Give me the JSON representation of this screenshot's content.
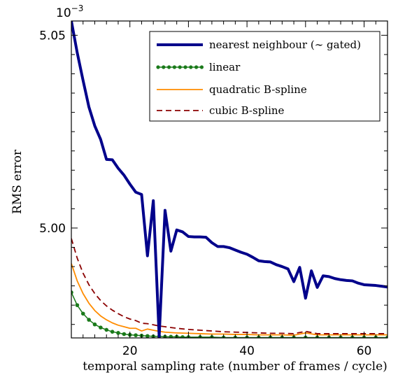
{
  "chart_data": {
    "type": "line",
    "title": "",
    "xlabel": "temporal sampling rate (number of frames / cycle)",
    "ylabel": "RMS error",
    "y_multiplier_label": "10",
    "y_multiplier_exponent": "−3",
    "xlim": [
      10,
      64
    ],
    "ylim": [
      4.9715,
      5.0537
    ],
    "x_ticks": [
      20,
      40,
      60
    ],
    "x_tick_labels": [
      "20",
      "40",
      "60"
    ],
    "y_ticks": [
      5.0,
      5.05
    ],
    "y_tick_labels": [
      "5.00",
      "5.05"
    ],
    "grid": false,
    "legend_position": "top-right",
    "series": [
      {
        "name": "nearest neighbour (∼ gated)",
        "color": "#00008b",
        "style": "solid-thick",
        "x": [
          10,
          11,
          12,
          13,
          14,
          15,
          16,
          17,
          18,
          19,
          20,
          21,
          22,
          23,
          24,
          25,
          26,
          27,
          28,
          29,
          30,
          31,
          32,
          33,
          34,
          35,
          36,
          37,
          38,
          39,
          40,
          41,
          42,
          43,
          44,
          45,
          46,
          47,
          48,
          49,
          50,
          51,
          52,
          53,
          54,
          55,
          56,
          57,
          58,
          59,
          60,
          61,
          62,
          63,
          64
        ],
        "values": [
          5.0537,
          5.0455,
          5.0383,
          5.0314,
          5.0265,
          5.023,
          5.0178,
          5.0177,
          5.0155,
          5.0137,
          5.0114,
          5.0093,
          5.0087,
          4.9928,
          5.0071,
          4.9718,
          5.0046,
          4.994,
          4.9995,
          4.999,
          4.9978,
          4.9977,
          4.9977,
          4.9976,
          4.9962,
          4.9952,
          4.9952,
          4.9949,
          4.9943,
          4.9937,
          4.9932,
          4.9924,
          4.9915,
          4.9913,
          4.9912,
          4.9905,
          4.99,
          4.9894,
          4.9861,
          4.9898,
          4.9818,
          4.9889,
          4.9846,
          4.9876,
          4.9874,
          4.9869,
          4.9866,
          4.9864,
          4.9863,
          4.9857,
          4.9853,
          4.9852,
          4.9851,
          4.9849,
          4.9847
        ]
      },
      {
        "name": "linear",
        "color": "#1a7a1a",
        "style": "dotted-markers",
        "x": [
          10,
          11,
          12,
          13,
          14,
          15,
          16,
          17,
          18,
          19,
          20,
          21,
          22,
          23,
          24,
          25,
          26,
          27,
          28,
          29,
          30,
          32,
          34,
          36,
          38,
          40,
          42,
          44,
          46,
          48,
          50,
          52,
          54,
          56,
          58,
          60,
          62,
          64
        ],
        "values": [
          4.9833,
          4.98,
          4.9778,
          4.9762,
          4.975,
          4.9742,
          4.9736,
          4.9731,
          4.9728,
          4.9725,
          4.9723,
          4.9722,
          4.9721,
          4.972,
          4.9719,
          4.9719,
          4.9718,
          4.9718,
          4.9718,
          4.9717,
          4.9717,
          4.9717,
          4.9717,
          4.9716,
          4.9716,
          4.9716,
          4.9716,
          4.9716,
          4.9716,
          4.9716,
          4.9716,
          4.9716,
          4.9716,
          4.9716,
          4.9716,
          4.9716,
          4.9716,
          4.9716
        ]
      },
      {
        "name": "quadratic B-spline",
        "color": "#ff8c00",
        "style": "solid-thin",
        "x": [
          10,
          11,
          12,
          13,
          14,
          15,
          16,
          17,
          18,
          19,
          20,
          21,
          22,
          23,
          24,
          25,
          26,
          28,
          30,
          32,
          34,
          36,
          38,
          40,
          42,
          44,
          46,
          48,
          50,
          52,
          54,
          56,
          58,
          60,
          62,
          64
        ],
        "values": [
          4.9908,
          4.9863,
          4.983,
          4.9805,
          4.9786,
          4.9772,
          4.9762,
          4.9754,
          4.9748,
          4.9744,
          4.974,
          4.974,
          4.9733,
          4.9738,
          4.9735,
          4.9732,
          4.973,
          4.9728,
          4.9727,
          4.9726,
          4.9725,
          4.9725,
          4.9724,
          4.9724,
          4.9723,
          4.9723,
          4.9723,
          4.9722,
          4.9728,
          4.9723,
          4.9723,
          4.9723,
          4.9723,
          4.9723,
          4.9723,
          4.9723
        ]
      },
      {
        "name": "cubic B-spline",
        "color": "#8b0000",
        "style": "dashed",
        "x": [
          10,
          11,
          12,
          13,
          14,
          15,
          16,
          17,
          18,
          19,
          20,
          21,
          22,
          23,
          24,
          25,
          26,
          28,
          30,
          32,
          34,
          36,
          38,
          40,
          42,
          44,
          46,
          48,
          50,
          52,
          54,
          56,
          58,
          60,
          62,
          64
        ],
        "values": [
          4.9973,
          4.9922,
          4.9883,
          4.9853,
          4.983,
          4.9812,
          4.9798,
          4.9787,
          4.9778,
          4.977,
          4.9764,
          4.976,
          4.9753,
          4.9752,
          4.9749,
          4.9746,
          4.9744,
          4.974,
          4.9737,
          4.9735,
          4.9733,
          4.9731,
          4.973,
          4.9729,
          4.9728,
          4.9727,
          4.9727,
          4.9726,
          4.9732,
          4.9726,
          4.9726,
          4.9726,
          4.9726,
          4.9726,
          4.9726,
          4.9726
        ]
      }
    ]
  }
}
